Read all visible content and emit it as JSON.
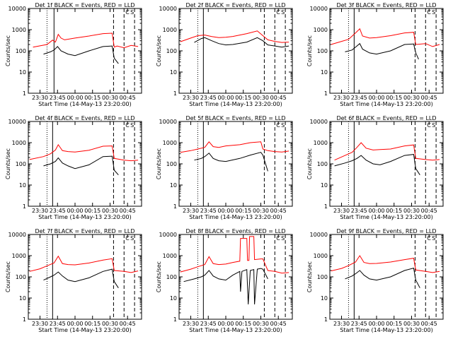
{
  "page": {
    "start_time_label": "Start Time (14-May-13 23:20:00)",
    "y_axis_label": "Counts/sec",
    "x_tick_labels": [
      "23:30",
      "23:45",
      "00:00",
      "00:15",
      "00:30",
      "00:45"
    ],
    "y_tick_labels": [
      "1",
      "10",
      "100",
      "1000",
      "10000"
    ]
  },
  "colors": {
    "events": "#000000",
    "lld": "#ff0000"
  },
  "chart_data": [
    {
      "type": "line",
      "title": "Det 1f BLACK = Events, RED = LLD",
      "xlim": [
        23.333,
        24.95
      ],
      "ylim": [
        1,
        10000
      ],
      "y_scale": "log",
      "vlines": {
        "dotted": 23.6,
        "solid": 23.7,
        "dashed": [
          24.55,
          24.7,
          24.85
        ]
      },
      "markers": [
        "C",
        "S"
      ],
      "series": [
        {
          "color": "#ff0000",
          "x": [
            23.4,
            23.6,
            23.68,
            23.72,
            23.76,
            23.8,
            23.85,
            24.0,
            24.2,
            24.4,
            24.53,
            24.56,
            24.6,
            24.7,
            24.8,
            24.9
          ],
          "y": [
            150,
            200,
            320,
            260,
            600,
            400,
            330,
            400,
            500,
            650,
            680,
            150,
            170,
            140,
            180,
            160
          ]
        },
        {
          "color": "#000000",
          "x": [
            23.55,
            23.65,
            23.7,
            23.75,
            23.8,
            23.9,
            24.0,
            24.2,
            24.4,
            24.53,
            24.56,
            24.62
          ],
          "y": [
            70,
            90,
            110,
            160,
            100,
            70,
            60,
            100,
            160,
            170,
            45,
            25
          ]
        }
      ]
    },
    {
      "type": "line",
      "title": "Det 2f BLACK = Events, RED = LLD",
      "xlim": [
        23.333,
        24.95
      ],
      "ylim": [
        1,
        10000
      ],
      "y_scale": "log",
      "vlines": {
        "dotted": 23.6,
        "solid": 23.68,
        "dashed": [
          24.55,
          24.7,
          24.85
        ]
      },
      "markers": [
        "C",
        "S"
      ],
      "series": [
        {
          "color": "#ff0000",
          "x": [
            23.35,
            23.5,
            23.6,
            23.7,
            23.8,
            23.9,
            24.0,
            24.1,
            24.3,
            24.45,
            24.53,
            24.6,
            24.7,
            24.8,
            24.9
          ],
          "y": [
            270,
            400,
            520,
            560,
            470,
            420,
            440,
            480,
            650,
            870,
            520,
            330,
            280,
            250,
            260
          ]
        },
        {
          "color": "#000000",
          "x": [
            23.55,
            23.65,
            23.7,
            23.8,
            23.9,
            24.0,
            24.1,
            24.3,
            24.45,
            24.53,
            24.6,
            24.7,
            24.8,
            24.9
          ],
          "y": [
            250,
            380,
            420,
            300,
            220,
            190,
            200,
            260,
            420,
            300,
            190,
            170,
            150,
            170
          ]
        }
      ]
    },
    {
      "type": "line",
      "title": "Det 3f BLACK = Events, RED = LLD",
      "xlim": [
        23.333,
        24.95
      ],
      "ylim": [
        1,
        10000
      ],
      "y_scale": "log",
      "vlines": {
        "dotted": 23.6,
        "solid": 23.68,
        "dashed": [
          24.55,
          24.7,
          24.85
        ]
      },
      "markers": [
        "C",
        "S"
      ],
      "series": [
        {
          "color": "#ff0000",
          "x": [
            23.35,
            23.5,
            23.6,
            23.7,
            23.76,
            23.8,
            23.9,
            24.0,
            24.2,
            24.4,
            24.53,
            24.56,
            24.7,
            24.8,
            24.9
          ],
          "y": [
            200,
            280,
            350,
            700,
            1100,
            500,
            400,
            420,
            520,
            700,
            750,
            200,
            220,
            160,
            200
          ]
        },
        {
          "color": "#000000",
          "x": [
            23.55,
            23.65,
            23.7,
            23.76,
            23.8,
            23.9,
            24.0,
            24.2,
            24.4,
            24.53,
            24.56,
            24.6
          ],
          "y": [
            90,
            110,
            150,
            220,
            120,
            80,
            70,
            100,
            200,
            210,
            80,
            40
          ]
        }
      ]
    },
    {
      "type": "line",
      "title": "Det 4f BLACK = Events, RED = LLD",
      "xlim": [
        23.333,
        24.95
      ],
      "ylim": [
        1,
        10000
      ],
      "y_scale": "log",
      "vlines": {
        "dotted": 23.6,
        "solid": 23.68,
        "dashed": [
          24.55,
          24.7,
          24.85
        ]
      },
      "markers": [
        "C",
        "S"
      ],
      "series": [
        {
          "color": "#ff0000",
          "x": [
            23.35,
            23.55,
            23.65,
            23.72,
            23.76,
            23.82,
            23.9,
            24.0,
            24.2,
            24.4,
            24.53,
            24.56,
            24.7,
            24.8,
            24.9
          ],
          "y": [
            160,
            220,
            300,
            450,
            800,
            420,
            380,
            360,
            440,
            680,
            700,
            180,
            150,
            140,
            150
          ]
        },
        {
          "color": "#000000",
          "x": [
            23.55,
            23.65,
            23.72,
            23.76,
            23.82,
            23.9,
            24.0,
            24.2,
            24.4,
            24.53,
            24.56,
            24.62
          ],
          "y": [
            80,
            100,
            130,
            190,
            110,
            80,
            60,
            90,
            220,
            230,
            50,
            30
          ]
        }
      ]
    },
    {
      "type": "line",
      "title": "Det 5f BLACK = Events, RED = LLD",
      "xlim": [
        23.333,
        24.95
      ],
      "ylim": [
        1,
        10000
      ],
      "y_scale": "log",
      "vlines": {
        "dotted": 23.6,
        "solid": 23.68,
        "dashed": [
          24.55,
          24.7,
          24.85
        ]
      },
      "markers": [
        "C",
        "S"
      ],
      "series": [
        {
          "color": "#ff0000",
          "x": [
            23.35,
            23.5,
            23.6,
            23.7,
            23.76,
            23.82,
            23.9,
            24.0,
            24.2,
            24.35,
            24.5,
            24.53,
            24.6,
            24.7,
            24.8,
            24.9
          ],
          "y": [
            350,
            420,
            500,
            600,
            1100,
            650,
            600,
            700,
            800,
            1000,
            1100,
            500,
            420,
            380,
            360,
            400
          ]
        },
        {
          "color": "#000000",
          "x": [
            23.55,
            23.65,
            23.7,
            23.76,
            23.82,
            23.9,
            24.0,
            24.2,
            24.35,
            24.5,
            24.53,
            24.6
          ],
          "y": [
            150,
            180,
            220,
            320,
            180,
            140,
            130,
            180,
            260,
            350,
            260,
            45
          ]
        }
      ]
    },
    {
      "type": "line",
      "title": "Det 6f BLACK = Events, RED = LLD",
      "xlim": [
        23.333,
        24.95
      ],
      "ylim": [
        1,
        10000
      ],
      "y_scale": "log",
      "vlines": {
        "dotted": 23.6,
        "solid": 23.68,
        "dashed": [
          24.55,
          24.7,
          24.85
        ]
      },
      "markers": [
        "C",
        "S"
      ],
      "series": [
        {
          "color": "#ff0000",
          "x": [
            23.4,
            23.55,
            23.65,
            23.72,
            23.78,
            23.85,
            23.95,
            24.05,
            24.2,
            24.4,
            24.53,
            24.56,
            24.7,
            24.8,
            24.9
          ],
          "y": [
            150,
            250,
            350,
            600,
            1000,
            550,
            450,
            470,
            500,
            700,
            780,
            180,
            160,
            150,
            160
          ]
        },
        {
          "color": "#000000",
          "x": [
            23.4,
            23.55,
            23.65,
            23.72,
            23.78,
            23.85,
            23.95,
            24.05,
            24.2,
            24.4,
            24.53,
            24.56,
            24.62
          ],
          "y": [
            80,
            110,
            140,
            180,
            250,
            150,
            100,
            90,
            130,
            250,
            280,
            60,
            30
          ]
        }
      ]
    },
    {
      "type": "line",
      "title": "Det 7f BLACK = Events, RED = LLD",
      "xlim": [
        23.333,
        24.95
      ],
      "ylim": [
        1,
        10000
      ],
      "y_scale": "log",
      "vlines": {
        "dotted": 23.6,
        "solid": 23.68,
        "dashed": [
          24.55,
          24.7,
          24.85
        ]
      },
      "markers": [
        "C",
        "S"
      ],
      "series": [
        {
          "color": "#ff0000",
          "x": [
            23.35,
            23.5,
            23.6,
            23.7,
            23.76,
            23.82,
            23.9,
            24.0,
            24.2,
            24.4,
            24.53,
            24.56,
            24.7,
            24.8,
            24.9
          ],
          "y": [
            180,
            240,
            330,
            450,
            950,
            420,
            380,
            370,
            450,
            620,
            720,
            200,
            180,
            160,
            190
          ]
        },
        {
          "color": "#000000",
          "x": [
            23.55,
            23.65,
            23.7,
            23.76,
            23.82,
            23.9,
            24.0,
            24.2,
            24.4,
            24.53,
            24.56,
            24.62
          ],
          "y": [
            70,
            100,
            120,
            170,
            110,
            70,
            60,
            90,
            180,
            230,
            60,
            30
          ]
        }
      ]
    },
    {
      "type": "line",
      "title": "Det 8f BLACK = Events, RED = LLD",
      "xlim": [
        23.333,
        24.95
      ],
      "ylim": [
        1,
        10000
      ],
      "y_scale": "log",
      "vlines": {
        "dotted": 23.6,
        "solid": 23.68,
        "dashed": [
          24.55,
          24.7,
          24.85
        ]
      },
      "markers": [
        "C",
        "S"
      ],
      "series": [
        {
          "color": "#ff0000",
          "x": [
            23.35,
            23.5,
            23.6,
            23.7,
            23.76,
            23.82,
            23.9,
            24.0,
            24.1,
            24.2,
            24.21,
            24.3,
            24.31,
            24.33,
            24.34,
            24.4,
            24.41,
            24.5,
            24.53,
            24.6,
            24.7,
            24.8,
            24.9
          ],
          "y": [
            170,
            230,
            300,
            380,
            900,
            420,
            380,
            400,
            480,
            550,
            6500,
            6500,
            600,
            600,
            8000,
            8000,
            650,
            700,
            700,
            200,
            180,
            150,
            160
          ]
        },
        {
          "color": "#000000",
          "x": [
            23.4,
            23.55,
            23.65,
            23.7,
            23.76,
            23.82,
            23.9,
            24.0,
            24.1,
            24.2,
            24.21,
            24.23,
            24.3,
            24.32,
            24.35,
            24.4,
            24.41,
            24.45,
            24.5,
            24.53,
            24.6
          ],
          "y": [
            60,
            80,
            100,
            120,
            200,
            110,
            80,
            70,
            120,
            180,
            20,
            180,
            220,
            5,
            200,
            220,
            5,
            230,
            250,
            230,
            80
          ]
        }
      ]
    },
    {
      "type": "line",
      "title": "Det 9f BLACK = Events, RED = LLD",
      "xlim": [
        23.333,
        24.95
      ],
      "ylim": [
        1,
        10000
      ],
      "y_scale": "log",
      "vlines": {
        "dotted": 23.6,
        "solid": 23.68,
        "dashed": [
          24.55,
          24.7,
          24.85
        ]
      },
      "markers": [
        "C",
        "S"
      ],
      "series": [
        {
          "color": "#ff0000",
          "x": [
            23.35,
            23.5,
            23.6,
            23.7,
            23.76,
            23.82,
            23.9,
            24.0,
            24.2,
            24.4,
            24.53,
            24.56,
            24.7,
            24.8,
            24.9
          ],
          "y": [
            190,
            250,
            340,
            500,
            1000,
            480,
            420,
            430,
            500,
            650,
            760,
            210,
            180,
            160,
            180
          ]
        },
        {
          "color": "#000000",
          "x": [
            23.55,
            23.65,
            23.7,
            23.76,
            23.82,
            23.9,
            24.0,
            24.2,
            24.4,
            24.53,
            24.56,
            24.62
          ],
          "y": [
            80,
            110,
            140,
            200,
            120,
            80,
            70,
            100,
            200,
            260,
            70,
            30
          ]
        }
      ]
    }
  ]
}
